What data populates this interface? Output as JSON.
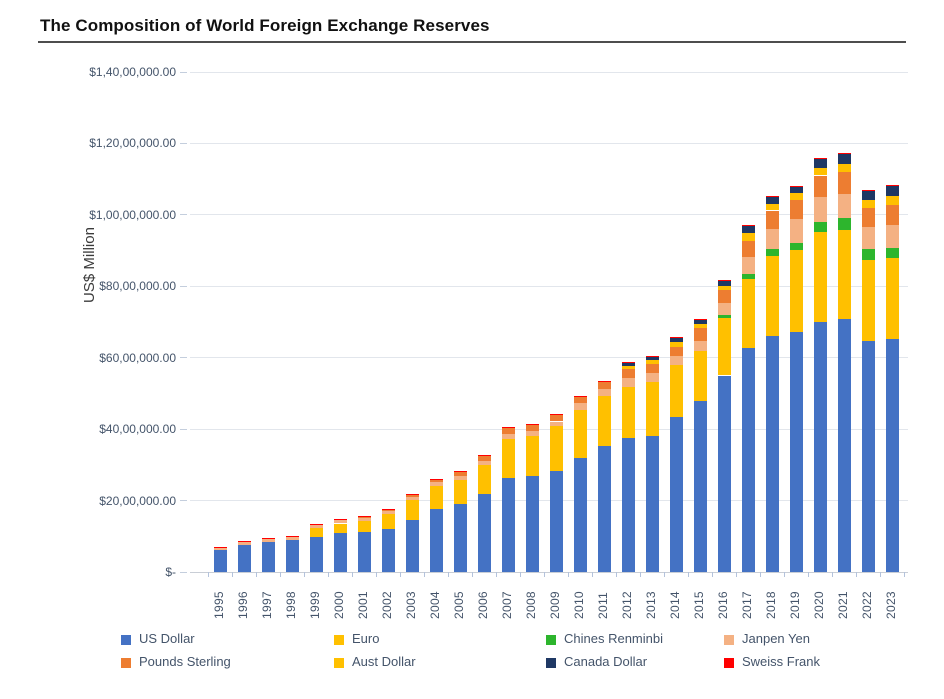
{
  "title": "The Composition of World Foreign Exchange Reserves",
  "chart_data": {
    "type": "bar",
    "stacked": true,
    "title": "The Composition of World Foreign Exchange Reserves",
    "xlabel": "",
    "ylabel": "US$ Million",
    "ylim": [
      0,
      14000000
    ],
    "grid": true,
    "legend_position": "bottom",
    "y_tick_labels_bottom_to_top": [
      "$-",
      "$20,00,000.00",
      "$40,00,000.00",
      "$60,00,000.00",
      "$80,00,000.00",
      "$1,00,00,000.00",
      "$1,20,00,000.00",
      "$1,40,00,000.00"
    ],
    "categories": [
      "1995",
      "1996",
      "1997",
      "1998",
      "1999",
      "2000",
      "2001",
      "2002",
      "2003",
      "2004",
      "2005",
      "2006",
      "2007",
      "2008",
      "2009",
      "2010",
      "2011",
      "2012",
      "2013",
      "2014",
      "2015",
      "2016",
      "2017",
      "2018",
      "2019",
      "2020",
      "2021",
      "2022",
      "2023"
    ],
    "series": [
      {
        "name": "US Dollar",
        "color": "#4472c4",
        "values": [
          610000,
          760000,
          840000,
          890000,
          979000,
          1080000,
          1122000,
          1205000,
          1466000,
          1751000,
          1903000,
          2171000,
          2642000,
          2698000,
          2836000,
          3193000,
          3534000,
          3742000,
          3808000,
          4350000,
          4787000,
          5502000,
          6282000,
          6617000,
          6726000,
          7001000,
          7087000,
          6471000,
          6516000
        ]
      },
      {
        "name": "Euro",
        "color": "#ffc000",
        "values": [
          0,
          0,
          0,
          0,
          247000,
          278000,
          301000,
          427000,
          559000,
          659000,
          684000,
          831000,
          1082000,
          1112000,
          1250000,
          1350000,
          1395000,
          1447000,
          1518000,
          1440000,
          1403000,
          1611000,
          1930000,
          2218000,
          2280000,
          2526000,
          2489000,
          2271000,
          2287000
        ]
      },
      {
        "name": "Chines Renminbi",
        "color": "#2db52d",
        "values": [
          0,
          0,
          0,
          0,
          0,
          0,
          0,
          0,
          0,
          0,
          0,
          0,
          0,
          0,
          0,
          0,
          0,
          0,
          0,
          0,
          0,
          90000,
          123000,
          203000,
          214000,
          271000,
          337000,
          298000,
          262000
        ]
      },
      {
        "name": "Janpen Yen",
        "color": "#f4b183",
        "values": [
          70000,
          80000,
          78000,
          85000,
          88000,
          92000,
          88000,
          78000,
          88000,
          102000,
          102000,
          102000,
          134000,
          146000,
          128000,
          180000,
          203000,
          250000,
          243000,
          260000,
          280000,
          333000,
          490000,
          572000,
          653000,
          715000,
          666000,
          609000,
          648000
        ]
      },
      {
        "name": "Pounds Sterling",
        "color": "#ed7d31",
        "values": [
          21000,
          30000,
          37000,
          38000,
          40000,
          40000,
          41000,
          45000,
          60000,
          74000,
          124000,
          165000,
          200000,
          183000,
          205000,
          203000,
          215000,
          245000,
          249000,
          260000,
          350000,
          349000,
          454000,
          512000,
          536000,
          589000,
          625000,
          554000,
          576000
        ]
      },
      {
        "name": "Aust Dollar",
        "color": "#ffc000",
        "values": [
          0,
          0,
          0,
          0,
          0,
          0,
          0,
          0,
          0,
          0,
          0,
          0,
          0,
          0,
          0,
          0,
          0,
          90000,
          112000,
          120000,
          120000,
          134000,
          200000,
          190000,
          190000,
          216000,
          216000,
          221000,
          245000
        ]
      },
      {
        "name": "Canada Dollar",
        "color": "#1f3864",
        "values": [
          0,
          0,
          0,
          0,
          0,
          0,
          0,
          0,
          0,
          0,
          0,
          0,
          0,
          0,
          0,
          0,
          0,
          95000,
          112000,
          130000,
          115000,
          152000,
          228000,
          208000,
          206000,
          246000,
          287000,
          262000,
          291000
        ]
      },
      {
        "name": "Sweiss Frank",
        "color": "#ff0000",
        "values": [
          3000,
          3000,
          3000,
          4000,
          4000,
          4000,
          4000,
          6000,
          8000,
          9000,
          7000,
          8000,
          8000,
          9000,
          11000,
          13000,
          14000,
          13000,
          17000,
          17000,
          18000,
          14000,
          16000,
          15000,
          17000,
          21000,
          20000,
          18000,
          18000
        ]
      }
    ]
  }
}
